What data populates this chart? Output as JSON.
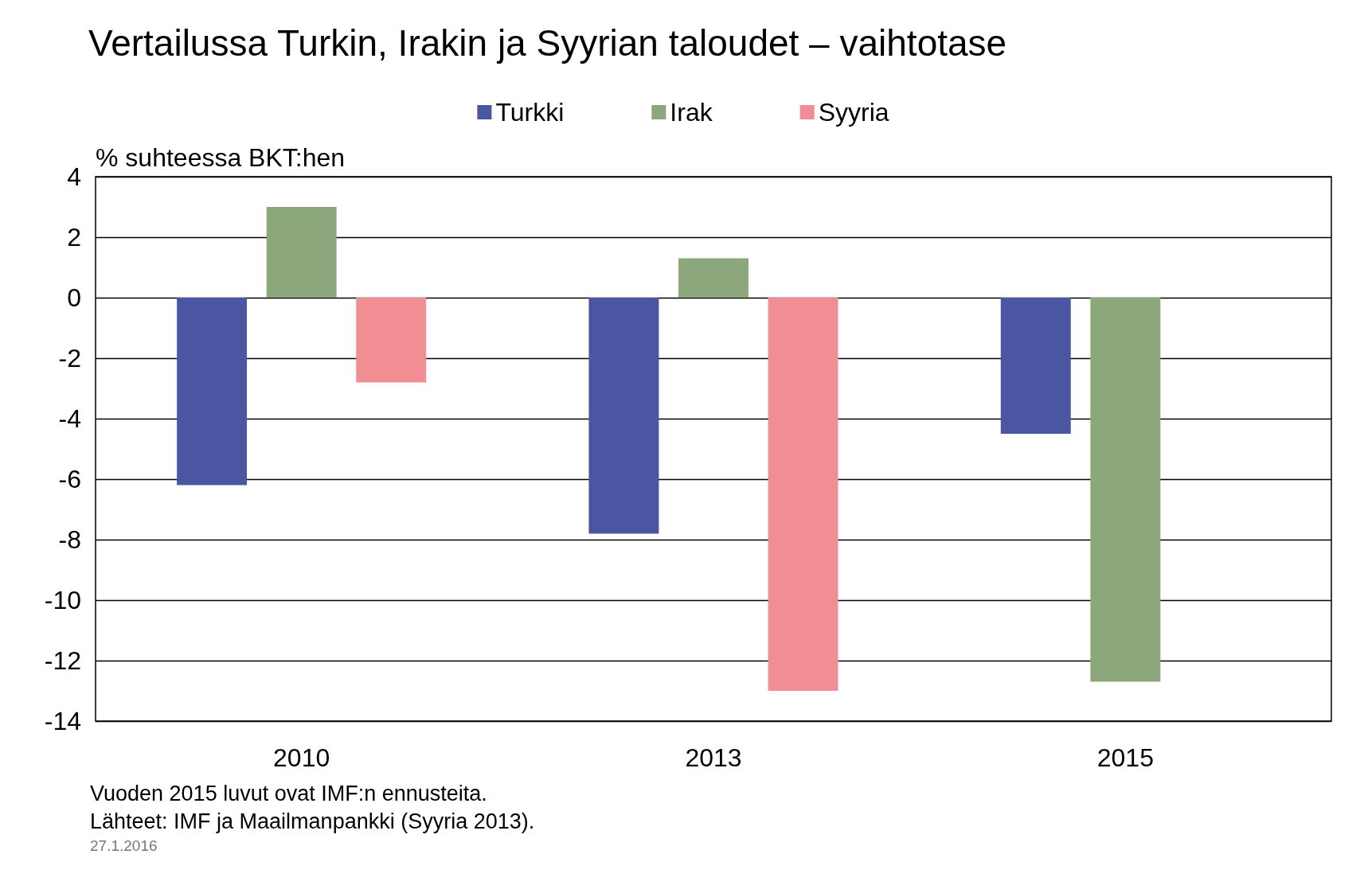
{
  "chart_data": {
    "type": "bar",
    "title": "Vertailussa Turkin, Irakin ja Syyrian taloudet – vaihtotase",
    "ylabel": "% suhteessa BKT:hen",
    "categories": [
      "2010",
      "2013",
      "2015"
    ],
    "series": [
      {
        "name": "Turkki",
        "color": "#4b56a3",
        "values": [
          -6.2,
          -7.8,
          -4.5
        ]
      },
      {
        "name": "Irak",
        "color": "#8ba77b",
        "values": [
          3.0,
          1.3,
          -12.7
        ]
      },
      {
        "name": "Syyria",
        "color": "#f08e93",
        "values": [
          -2.8,
          -13.0,
          null
        ]
      }
    ],
    "ylim": [
      -14,
      4
    ],
    "yticks": [
      -14,
      -12,
      -10,
      -8,
      -6,
      -4,
      -2,
      0,
      2,
      4
    ],
    "grid": "y",
    "legend": "top",
    "annotations": [
      "Vuoden 2015 luvut ovat IMF:n ennusteita.",
      "Lähteet: IMF ja Maailmanpankki (Syyria 2013).",
      "27.1.2016"
    ]
  }
}
